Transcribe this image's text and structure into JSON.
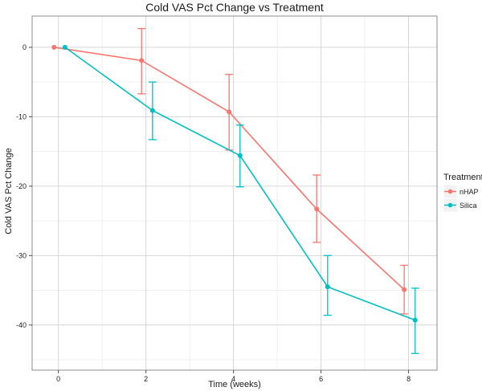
{
  "chart_data": {
    "type": "line",
    "title": "Cold VAS Pct Change vs Treatment",
    "xlabel": "Time (weeks)",
    "ylabel": "Cold VAS Pct Change",
    "xlim": [
      -0.6,
      8.65
    ],
    "ylim": [
      -46.5,
      4.5
    ],
    "x_ticks": [
      0,
      2,
      4,
      6,
      8
    ],
    "x_tick_labels": [
      "0",
      "2",
      "4",
      "6",
      "8"
    ],
    "y_ticks": [
      0,
      -10,
      -20,
      -30,
      -40
    ],
    "y_tick_labels": [
      "0",
      "-10",
      "-20",
      "-30",
      "-40"
    ],
    "grid": true,
    "legend": {
      "title": "Treatment",
      "placement": "right"
    },
    "series": [
      {
        "name": "nHAP",
        "color": "#F8766D",
        "x": [
          -0.1,
          1.9,
          3.9,
          5.9,
          7.9
        ],
        "y": [
          0,
          -1.9,
          -9.3,
          -23.3,
          -34.9
        ],
        "err_low": [
          0,
          -6.7,
          -14.8,
          -28.1,
          -38.4
        ],
        "err_high": [
          0,
          2.7,
          -3.9,
          -18.4,
          -31.4
        ]
      },
      {
        "name": "Silica",
        "color": "#00BFC4",
        "x": [
          0.15,
          2.15,
          4.15,
          6.15,
          8.15
        ],
        "y": [
          0,
          -9.1,
          -15.6,
          -34.5,
          -39.3
        ],
        "err_low": [
          0,
          -13.3,
          -20.1,
          -38.6,
          -44.1
        ],
        "err_high": [
          0,
          -5.0,
          -11.2,
          -30.0,
          -34.7
        ]
      }
    ]
  }
}
